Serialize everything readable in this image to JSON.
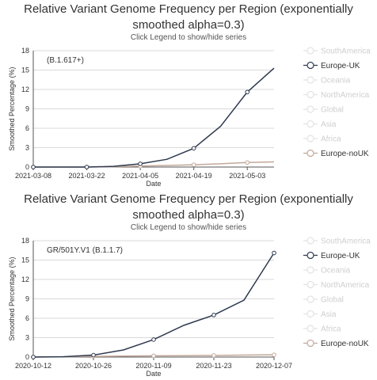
{
  "chart_data": [
    {
      "type": "line",
      "title": "Relative Variant Genome Frequency per Region (exponentially smoothed alpha=0.3)",
      "subtitle": "Click Legend to show/hide series",
      "annotation": "(B.1.617+)",
      "xlabel": "Date",
      "ylabel": "Smoothed Percentage (%)",
      "ylim": [
        0,
        18
      ],
      "yticks": [
        0,
        3,
        6,
        9,
        12,
        15,
        18
      ],
      "x_tick_labels": [
        "2021-03-08",
        "2021-03-22",
        "2021-04-05",
        "2021-04-19",
        "2021-05-03"
      ],
      "x": [
        "2021-03-08",
        "2021-03-15",
        "2021-03-22",
        "2021-03-29",
        "2021-04-05",
        "2021-04-12",
        "2021-04-19",
        "2021-04-26",
        "2021-05-03",
        "2021-05-10"
      ],
      "grid": true,
      "legend_position": "right",
      "legend": [
        {
          "name": "SouthAmerica",
          "visible": false,
          "color": "#e3e3e3"
        },
        {
          "name": "Europe-UK",
          "visible": true,
          "color": "#2e3a4f"
        },
        {
          "name": "Oceania",
          "visible": false,
          "color": "#e3e3e3"
        },
        {
          "name": "NorthAmerica",
          "visible": false,
          "color": "#e3e3e3"
        },
        {
          "name": "Global",
          "visible": false,
          "color": "#e3e3e3"
        },
        {
          "name": "Asia",
          "visible": false,
          "color": "#e3e3e3"
        },
        {
          "name": "Africa",
          "visible": false,
          "color": "#e3e3e3"
        },
        {
          "name": "Europe-noUK",
          "visible": true,
          "color": "#c3a89a"
        }
      ],
      "series": [
        {
          "name": "Europe-UK",
          "color": "#2e3a4f",
          "values": [
            0.0,
            0.0,
            0.0,
            0.1,
            0.5,
            1.2,
            2.9,
            6.3,
            11.6,
            15.3
          ],
          "markers": [
            0,
            2,
            4,
            6,
            8
          ]
        },
        {
          "name": "Europe-noUK",
          "color": "#c3a89a",
          "values": [
            0.0,
            0.0,
            0.0,
            0.05,
            0.15,
            0.25,
            0.35,
            0.5,
            0.7,
            0.8
          ],
          "markers": [
            0,
            2,
            4,
            6,
            8
          ]
        }
      ]
    },
    {
      "type": "line",
      "title": "Relative Variant Genome Frequency per Region (exponentially smoothed alpha=0.3)",
      "subtitle": "Click Legend to show/hide series",
      "annotation": "GR/501Y.V1 (B.1.1.7)",
      "xlabel": "Date",
      "ylabel": "Smoothed Percentage (%)",
      "ylim": [
        0,
        18
      ],
      "yticks": [
        0,
        3,
        6,
        9,
        12,
        15,
        18
      ],
      "x_tick_labels": [
        "2020-10-12",
        "2020-10-26",
        "2020-11-09",
        "2020-11-23",
        "2020-12-07"
      ],
      "x": [
        "2020-10-12",
        "2020-10-19",
        "2020-10-26",
        "2020-11-02",
        "2020-11-09",
        "2020-11-16",
        "2020-11-23",
        "2020-11-30",
        "2020-12-07"
      ],
      "grid": true,
      "legend_position": "right",
      "legend": [
        {
          "name": "SouthAmerica",
          "visible": false,
          "color": "#e3e3e3"
        },
        {
          "name": "Europe-UK",
          "visible": true,
          "color": "#2e3a4f"
        },
        {
          "name": "Oceania",
          "visible": false,
          "color": "#e3e3e3"
        },
        {
          "name": "NorthAmerica",
          "visible": false,
          "color": "#e3e3e3"
        },
        {
          "name": "Global",
          "visible": false,
          "color": "#e3e3e3"
        },
        {
          "name": "Asia",
          "visible": false,
          "color": "#e3e3e3"
        },
        {
          "name": "Africa",
          "visible": false,
          "color": "#e3e3e3"
        },
        {
          "name": "Europe-noUK",
          "visible": true,
          "color": "#c3a89a"
        }
      ],
      "series": [
        {
          "name": "Europe-UK",
          "color": "#2e3a4f",
          "values": [
            0.0,
            0.05,
            0.3,
            1.1,
            2.7,
            4.9,
            6.5,
            8.8,
            16.1
          ],
          "markers": [
            0,
            2,
            4,
            6,
            8
          ]
        },
        {
          "name": "Europe-noUK",
          "color": "#c3a89a",
          "values": [
            0.0,
            0.05,
            0.1,
            0.15,
            0.2,
            0.22,
            0.25,
            0.3,
            0.35
          ],
          "markers": [
            0,
            2,
            4,
            6,
            8
          ]
        }
      ]
    }
  ]
}
